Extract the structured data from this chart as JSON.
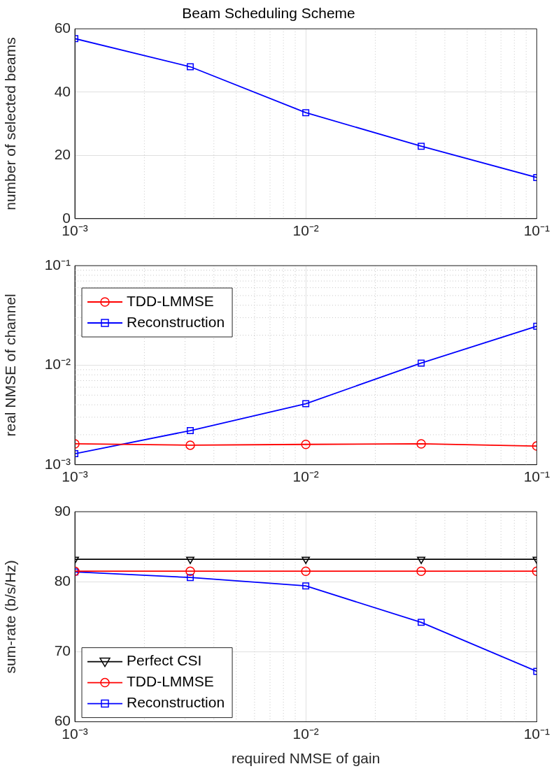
{
  "chart_data": [
    {
      "type": "line",
      "title": "Beam Scheduling Scheme",
      "ylabel": "number of selected beams",
      "x": [
        0.001,
        0.00316,
        0.01,
        0.0316,
        0.1
      ],
      "log": "x",
      "xlim": [
        0.001,
        0.1
      ],
      "xticks": [
        {
          "value": 0.001,
          "label": "10⁻³"
        },
        {
          "value": 0.01,
          "label": "10⁻²"
        },
        {
          "value": 0.1,
          "label": "10⁻¹"
        }
      ],
      "ylim": [
        0,
        60
      ],
      "yticks": [
        0,
        20,
        40,
        60
      ],
      "grid": true,
      "legend": false,
      "line_style": "solid",
      "series": [
        {
          "color": "#0000ff",
          "marker": "square",
          "values": [
            56.9,
            48,
            33.5,
            22.9,
            13
          ]
        }
      ]
    },
    {
      "type": "line",
      "ylabel": "real NMSE of channel",
      "x": [
        0.001,
        0.00316,
        0.01,
        0.0316,
        0.1
      ],
      "log": "xy",
      "xlim": [
        0.001,
        0.1
      ],
      "xticks": [
        {
          "value": 0.001,
          "label": "10⁻³"
        },
        {
          "value": 0.01,
          "label": "10⁻²"
        },
        {
          "value": 0.1,
          "label": "10⁻¹"
        }
      ],
      "ylim": [
        0.001,
        0.1
      ],
      "yticks": [
        {
          "value": 0.001,
          "label": "10⁻³"
        },
        {
          "value": 0.01,
          "label": "10⁻²"
        },
        {
          "value": 0.1,
          "label": "10⁻¹"
        }
      ],
      "grid": true,
      "legend": "top left",
      "line_style": "solid",
      "series": [
        {
          "name": "TDD-LMMSE",
          "color": "#ff0000",
          "marker": "circle",
          "values": [
            0.00162,
            0.00157,
            0.0016,
            0.00162,
            0.00154
          ]
        },
        {
          "name": "Reconstruction",
          "color": "#0000ff",
          "marker": "square",
          "values": [
            0.00129,
            0.0022,
            0.0041,
            0.0105,
            0.0246
          ]
        }
      ]
    },
    {
      "type": "line",
      "xlabel": "required NMSE of gain",
      "ylabel": "sum-rate (b/s/Hz)",
      "x": [
        0.001,
        0.00316,
        0.01,
        0.0316,
        0.1
      ],
      "log": "x",
      "xlim": [
        0.001,
        0.1
      ],
      "xticks": [
        {
          "value": 0.001,
          "label": "10⁻³"
        },
        {
          "value": 0.01,
          "label": "10⁻²"
        },
        {
          "value": 0.1,
          "label": "10⁻¹"
        }
      ],
      "ylim": [
        60,
        90
      ],
      "yticks": [
        60,
        70,
        80,
        90
      ],
      "grid": true,
      "legend": "bottom left",
      "line_style": "solid",
      "series": [
        {
          "name": "Perfect CSI",
          "color": "#000000",
          "marker": "triangle",
          "values": [
            83.2,
            83.2,
            83.2,
            83.2,
            83.2
          ]
        },
        {
          "name": "TDD-LMMSE",
          "color": "#ff0000",
          "marker": "circle",
          "values": [
            81.5,
            81.5,
            81.5,
            81.5,
            81.5
          ]
        },
        {
          "name": "Reconstruction",
          "color": "#0000ff",
          "marker": "square",
          "values": [
            81.4,
            80.6,
            79.4,
            74.2,
            67.2
          ]
        }
      ]
    }
  ]
}
